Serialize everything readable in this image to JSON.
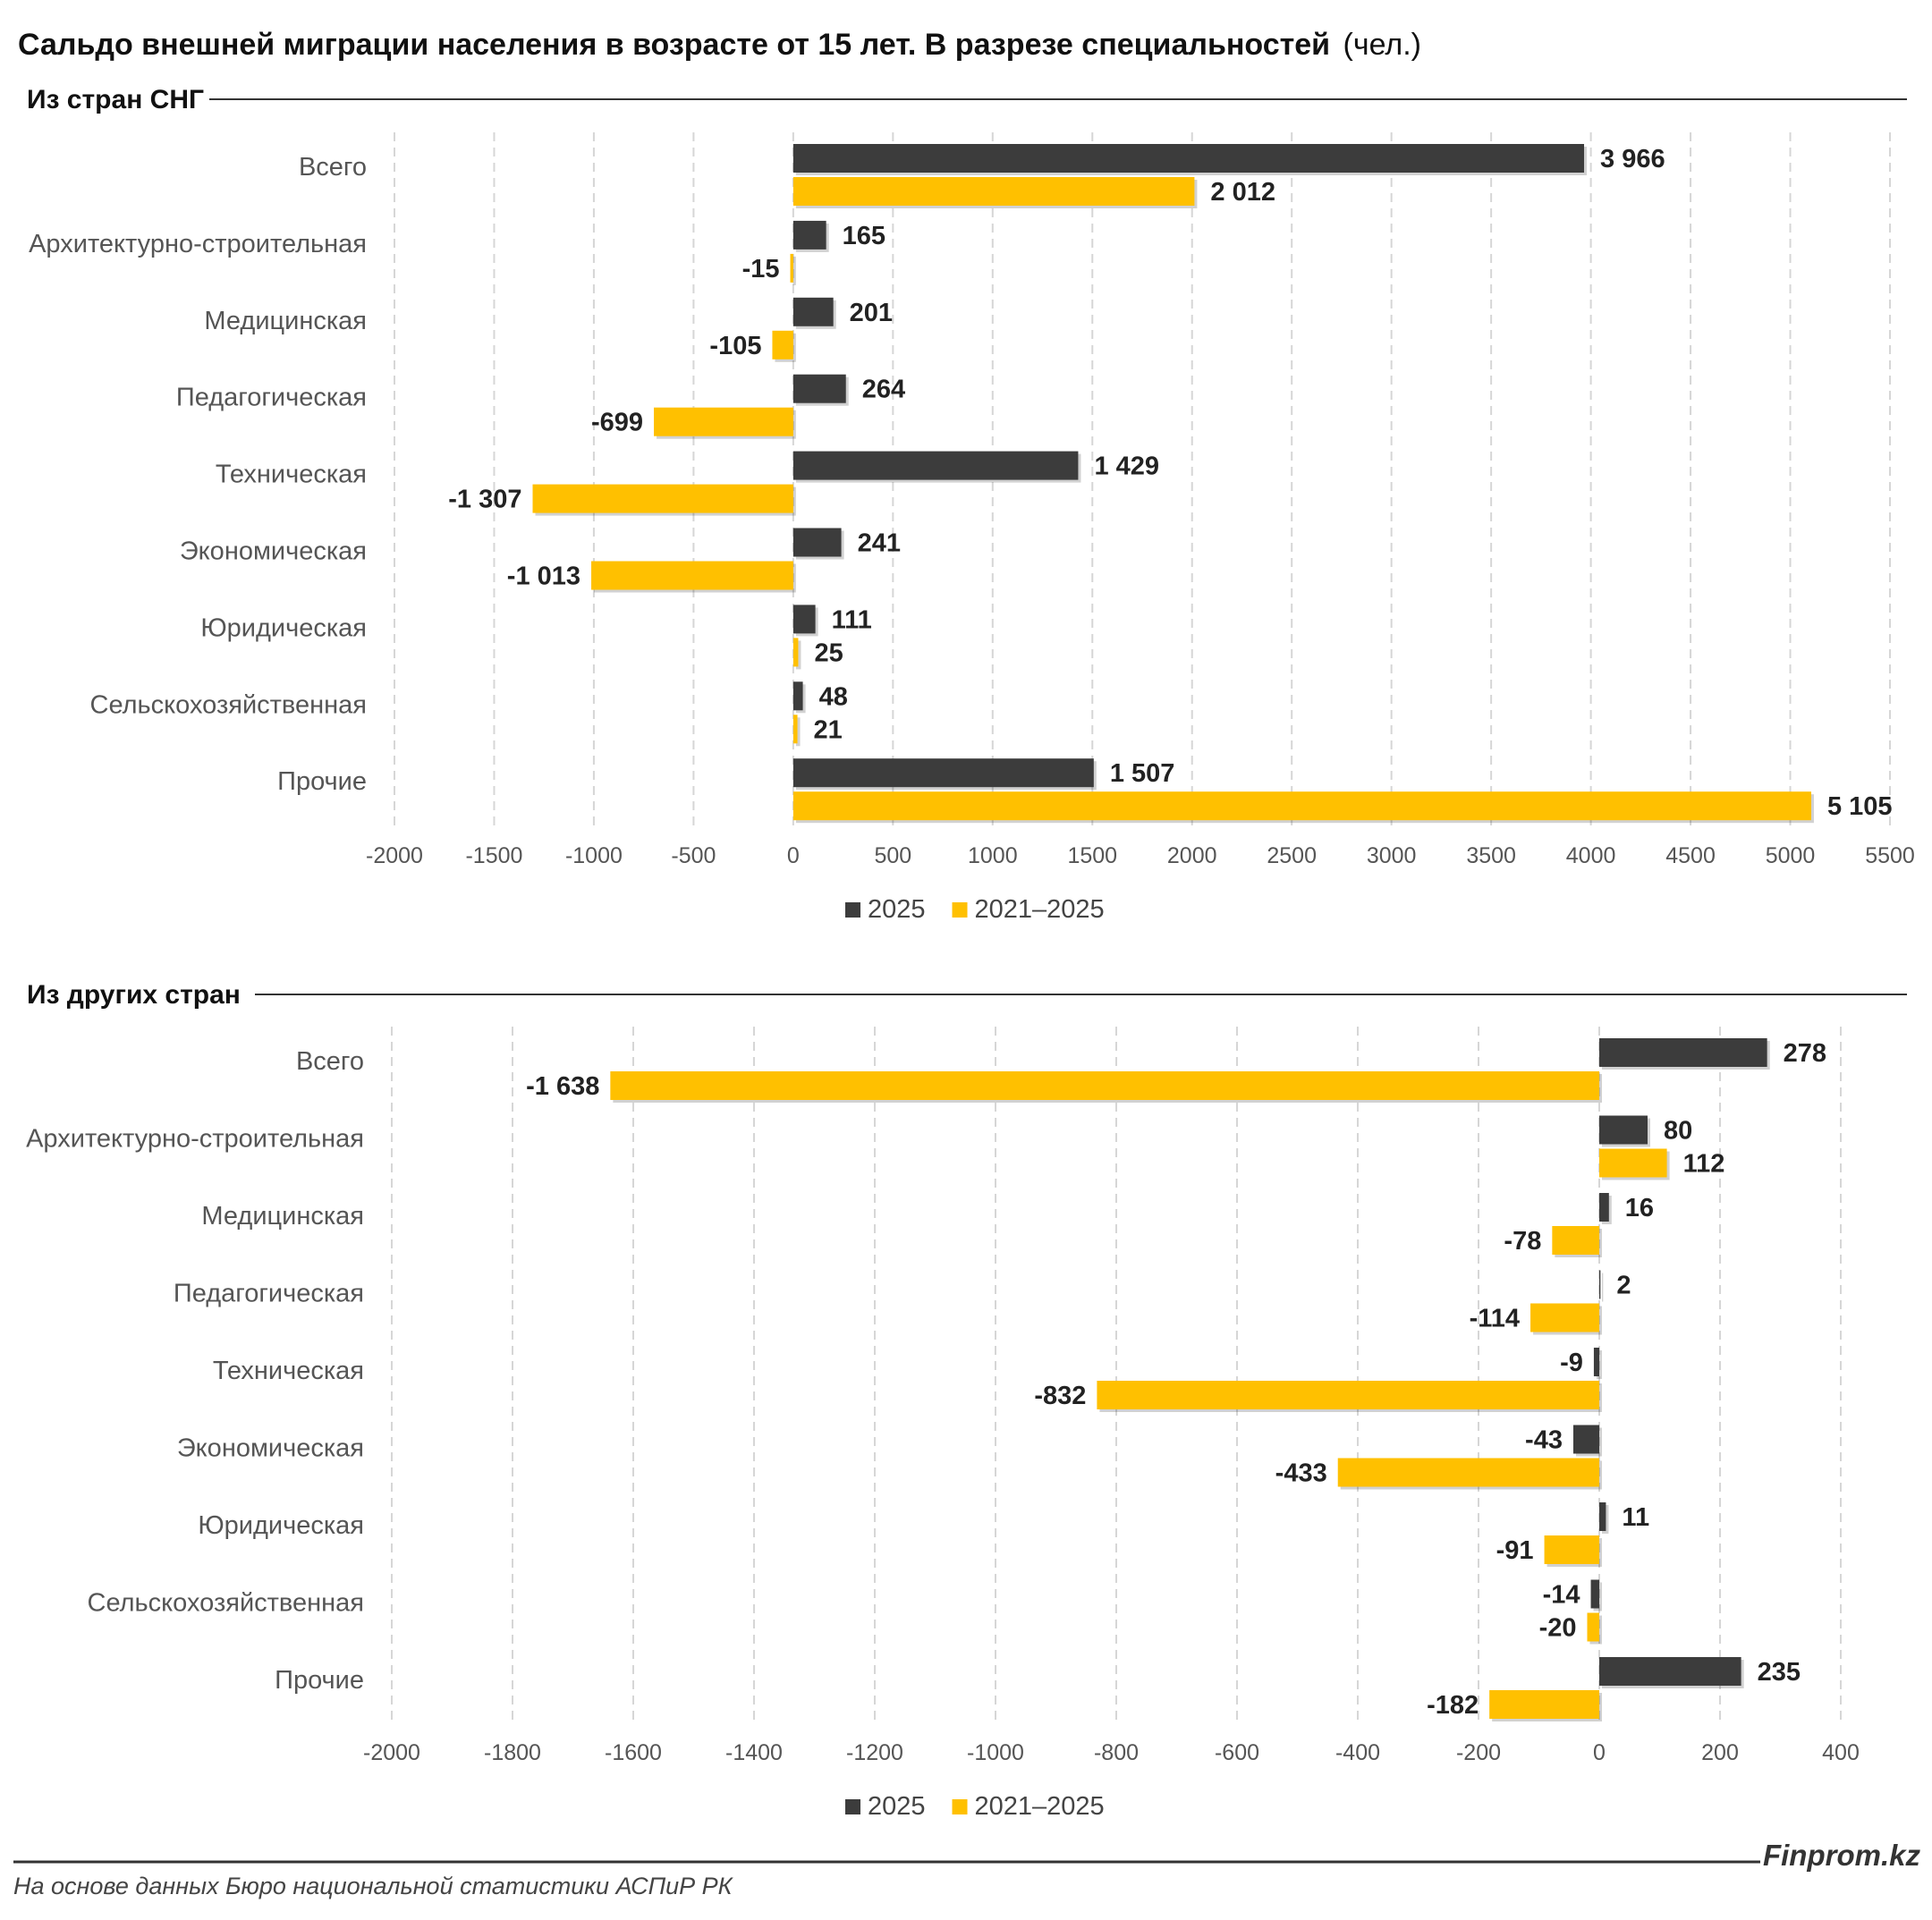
{
  "title": {
    "main": "Сальдо внешней миграции населения в возрасте от 15 лет. В разрезе специальностей",
    "unit": "(чел.)"
  },
  "colors": {
    "series_2025": "#3c3c3c",
    "series_2021_2025": "#ffc000",
    "grid": "#d6d6d6",
    "rule": "#333333"
  },
  "footer": {
    "source": "На основе данных Бюро национальной статистики АСПиР РК",
    "brand": "Finprom.kz"
  },
  "chart_data": [
    {
      "type": "bar",
      "orientation": "horizontal",
      "section_title": "Из стран СНГ",
      "categories": [
        "Всего",
        "Архитектурно-строительная",
        "Медицинская",
        "Педагогическая",
        "Техническая",
        "Экономическая",
        "Юридическая",
        "Сельскохозяйственная",
        "Прочие"
      ],
      "series": [
        {
          "name": "2025",
          "values": [
            3966,
            165,
            201,
            264,
            1429,
            241,
            111,
            48,
            1507
          ],
          "labels": [
            "3 966",
            "165",
            "201",
            "264",
            "1 429",
            "241",
            "111",
            "48",
            "1 507"
          ]
        },
        {
          "name": "2021–2025",
          "values": [
            2012,
            -15,
            -105,
            -699,
            -1307,
            -1013,
            25,
            21,
            5105
          ],
          "labels": [
            "2 012",
            "-15",
            "-105",
            "-699",
            "-1 307",
            "-1 013",
            "25",
            "21",
            "5 105"
          ]
        }
      ],
      "xlim": [
        -2000,
        5500
      ],
      "xticks": [
        -2000,
        -1500,
        -1000,
        -500,
        0,
        500,
        1000,
        1500,
        2000,
        2500,
        3000,
        3500,
        4000,
        4500,
        5000,
        5500
      ],
      "legend": [
        "2025",
        "2021–2025"
      ],
      "legend_position": "bottom",
      "grid": "vertical dashed"
    },
    {
      "type": "bar",
      "orientation": "horizontal",
      "section_title": "Из других стран",
      "categories": [
        "Всего",
        "Архитектурно-строительная",
        "Медицинская",
        "Педагогическая",
        "Техническая",
        "Экономическая",
        "Юридическая",
        "Сельскохозяйственная",
        "Прочие"
      ],
      "series": [
        {
          "name": "2025",
          "values": [
            278,
            80,
            16,
            2,
            -9,
            -43,
            11,
            -14,
            235
          ],
          "labels": [
            "278",
            "80",
            "16",
            "2",
            "-9",
            "-43",
            "11",
            "-14",
            "235"
          ]
        },
        {
          "name": "2021–2025",
          "values": [
            -1638,
            112,
            -78,
            -114,
            -832,
            -433,
            -91,
            -20,
            -182
          ],
          "labels": [
            "-1 638",
            "112",
            "-78",
            "-114",
            "-832",
            "-433",
            "-91",
            "-20",
            "-182"
          ]
        }
      ],
      "xlim": [
        -2000,
        400
      ],
      "xticks": [
        -2000,
        -1800,
        -1600,
        -1400,
        -1200,
        -1000,
        -800,
        -600,
        -400,
        -200,
        0,
        200,
        400
      ],
      "legend": [
        "2025",
        "2021–2025"
      ],
      "legend_position": "bottom",
      "grid": "vertical dashed"
    }
  ]
}
